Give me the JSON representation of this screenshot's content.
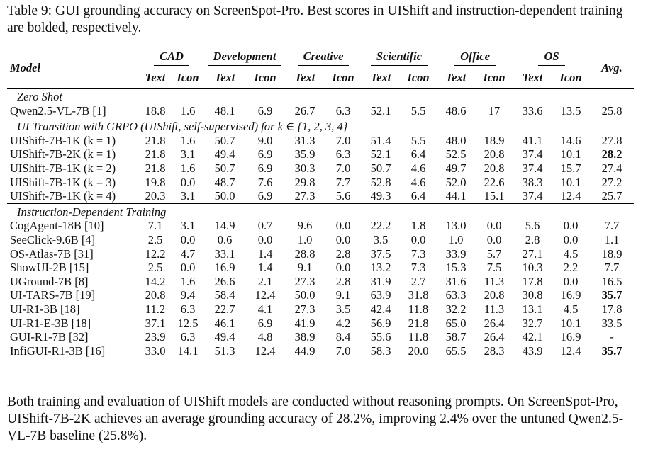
{
  "caption": "Table 9: GUI grounding accuracy on ScreenSpot-Pro. Best scores in UIShift and instruction-dependent training are bolded, respectively.",
  "header": {
    "model": "Model",
    "avg": "Avg.",
    "groups": [
      "CAD",
      "Development",
      "Creative",
      "Scientific",
      "Office",
      "OS"
    ],
    "sub": [
      "Text",
      "Icon"
    ]
  },
  "sections": [
    {
      "title": "Zero Shot",
      "rows": [
        {
          "model": "Qwen2.5-VL-7B [1]",
          "values": [
            "18.8",
            "1.6",
            "48.1",
            "6.9",
            "26.7",
            "6.3",
            "52.1",
            "5.5",
            "48.6",
            "17",
            "33.6",
            "13.5",
            "25.8"
          ],
          "bold": []
        }
      ]
    },
    {
      "title": "UI Transition with GRPO (UIShift, self-supervised) for k ∈ {1, 2, 3, 4}",
      "rows": [
        {
          "model": "UIShift-7B-1K (k = 1)",
          "values": [
            "21.8",
            "1.6",
            "50.7",
            "9.0",
            "31.3",
            "7.0",
            "51.4",
            "5.5",
            "48.0",
            "18.9",
            "41.1",
            "14.6",
            "27.8"
          ],
          "bold": []
        },
        {
          "model": "UIShift-7B-2K (k = 1)",
          "values": [
            "21.8",
            "3.1",
            "49.4",
            "6.9",
            "35.9",
            "6.3",
            "52.1",
            "6.4",
            "52.5",
            "20.8",
            "37.4",
            "10.1",
            "28.2"
          ],
          "bold": [
            12
          ]
        },
        {
          "model": "UIShift-7B-1K (k = 2)",
          "values": [
            "21.8",
            "1.6",
            "50.7",
            "6.9",
            "30.3",
            "7.0",
            "50.7",
            "4.6",
            "49.7",
            "20.8",
            "37.4",
            "15.7",
            "27.4"
          ],
          "bold": []
        },
        {
          "model": "UIShift-7B-1K (k = 3)",
          "values": [
            "19.8",
            "0.0",
            "48.7",
            "7.6",
            "29.8",
            "7.7",
            "52.8",
            "4.6",
            "52.0",
            "22.6",
            "38.3",
            "10.1",
            "27.2"
          ],
          "bold": []
        },
        {
          "model": "UIShift-7B-1K (k = 4)",
          "values": [
            "20.3",
            "3.1",
            "50.0",
            "6.9",
            "27.3",
            "5.6",
            "49.3",
            "6.4",
            "44.1",
            "15.1",
            "37.4",
            "12.4",
            "25.7"
          ],
          "bold": []
        }
      ]
    },
    {
      "title": "Instruction-Dependent Training",
      "rows": [
        {
          "model": "CogAgent-18B [10]",
          "values": [
            "7.1",
            "3.1",
            "14.9",
            "0.7",
            "9.6",
            "0.0",
            "22.2",
            "1.8",
            "13.0",
            "0.0",
            "5.6",
            "0.0",
            "7.7"
          ],
          "bold": []
        },
        {
          "model": "SeeClick-9.6B [4]",
          "values": [
            "2.5",
            "0.0",
            "0.6",
            "0.0",
            "1.0",
            "0.0",
            "3.5",
            "0.0",
            "1.0",
            "0.0",
            "2.8",
            "0.0",
            "1.1"
          ],
          "bold": []
        },
        {
          "model": "OS-Atlas-7B [31]",
          "values": [
            "12.2",
            "4.7",
            "33.1",
            "1.4",
            "28.8",
            "2.8",
            "37.5",
            "7.3",
            "33.9",
            "5.7",
            "27.1",
            "4.5",
            "18.9"
          ],
          "bold": []
        },
        {
          "model": "ShowUI-2B [15]",
          "values": [
            "2.5",
            "0.0",
            "16.9",
            "1.4",
            "9.1",
            "0.0",
            "13.2",
            "7.3",
            "15.3",
            "7.5",
            "10.3",
            "2.2",
            "7.7"
          ],
          "bold": []
        },
        {
          "model": "UGround-7B [8]",
          "values": [
            "14.2",
            "1.6",
            "26.6",
            "2.1",
            "27.3",
            "2.8",
            "31.9",
            "2.7",
            "31.6",
            "11.3",
            "17.8",
            "0.0",
            "16.5"
          ],
          "bold": []
        },
        {
          "model": "UI-TARS-7B [19]",
          "values": [
            "20.8",
            "9.4",
            "58.4",
            "12.4",
            "50.0",
            "9.1",
            "63.9",
            "31.8",
            "63.3",
            "20.8",
            "30.8",
            "16.9",
            "35.7"
          ],
          "bold": [
            12
          ]
        },
        {
          "model": "UI-R1-3B [18]",
          "values": [
            "11.2",
            "6.3",
            "22.7",
            "4.1",
            "27.3",
            "3.5",
            "42.4",
            "11.8",
            "32.2",
            "11.3",
            "13.1",
            "4.5",
            "17.8"
          ],
          "bold": []
        },
        {
          "model": "UI-R1-E-3B [18]",
          "values": [
            "37.1",
            "12.5",
            "46.1",
            "6.9",
            "41.9",
            "4.2",
            "56.9",
            "21.8",
            "65.0",
            "26.4",
            "32.7",
            "10.1",
            "33.5"
          ],
          "bold": []
        },
        {
          "model": "GUI-R1-7B [32]",
          "values": [
            "23.9",
            "6.3",
            "49.4",
            "4.8",
            "38.9",
            "8.4",
            "55.6",
            "11.8",
            "58.7",
            "26.4",
            "42.1",
            "16.9",
            "-"
          ],
          "bold": []
        },
        {
          "model": "InfiGUI-R1-3B [16]",
          "values": [
            "33.0",
            "14.1",
            "51.3",
            "12.4",
            "44.9",
            "7.0",
            "58.3",
            "20.0",
            "65.5",
            "28.3",
            "43.9",
            "12.4",
            "35.7"
          ],
          "bold": [
            12
          ]
        }
      ]
    }
  ],
  "tail": "Both training and evaluation of UIShift models are conducted without reasoning prompts. On ScreenSpot-Pro, UIShift-7B-2K achieves an average grounding accuracy of 28.2%, improving 2.4% over the untuned Qwen2.5-VL-7B baseline (25.8%)."
}
